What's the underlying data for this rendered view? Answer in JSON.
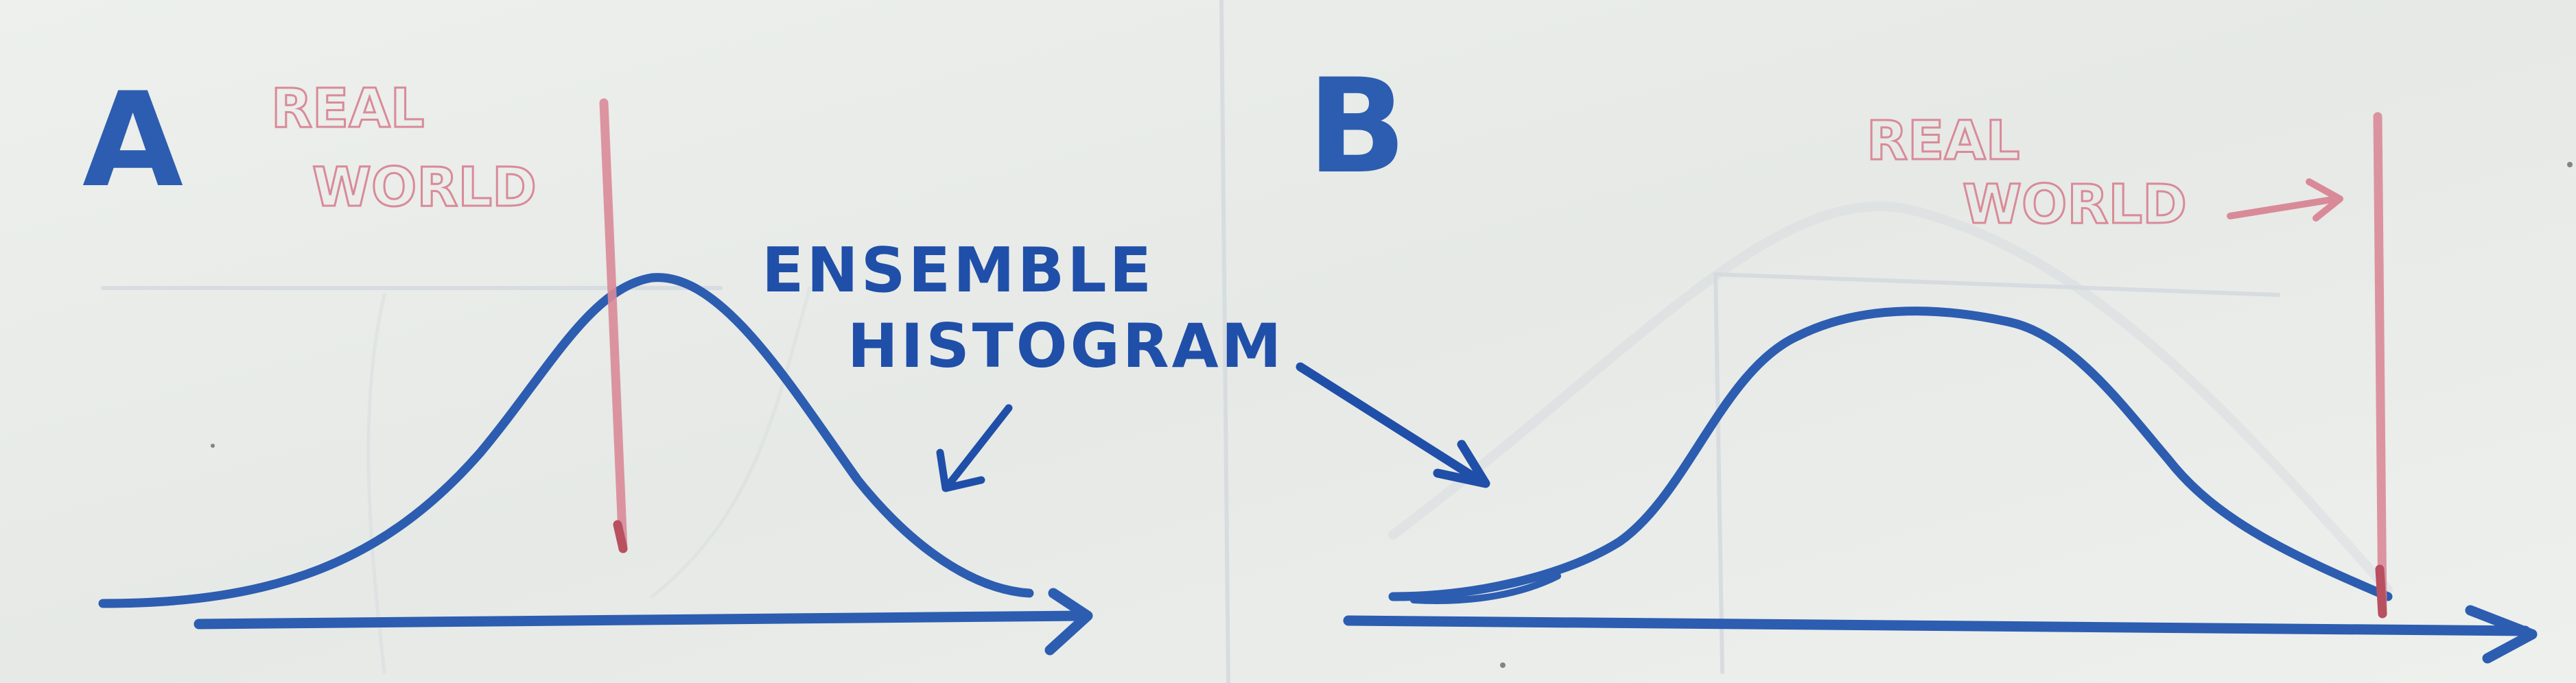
{
  "panels": [
    {
      "id": "A",
      "label": "A",
      "real_world_label": [
        "REAL",
        "WORLD"
      ]
    },
    {
      "id": "B",
      "label": "B",
      "real_world_label": [
        "REAL",
        "WORLD"
      ]
    }
  ],
  "annotation": {
    "lines": [
      "ENSEMBLE",
      "HISTOGRAM"
    ]
  },
  "colors": {
    "board": "#e9ece8",
    "marker_blue": "#2c5db0",
    "marker_red": "#d98a98",
    "ghost": "#cfd7dd"
  }
}
